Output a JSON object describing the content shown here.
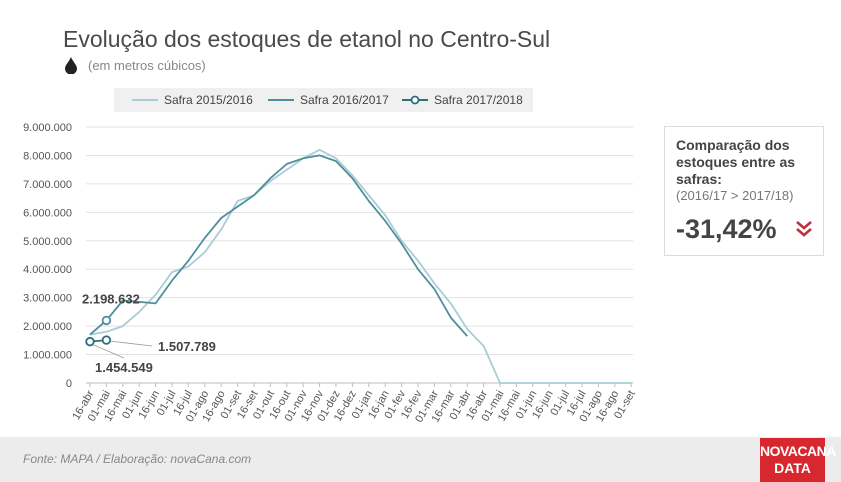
{
  "header": {
    "title": "Evolução dos estoques de etanol no Centro-Sul",
    "subtitle": "(em metros cúbicos)"
  },
  "legend": [
    {
      "name": "Safra 2015/2016",
      "color": "#a9cdd5"
    },
    {
      "name": "Safra 2016/2017",
      "color": "#4f8f9b"
    },
    {
      "name": "Safra 2017/2018",
      "color": "#2f6f7c"
    }
  ],
  "callout": {
    "heading": "Comparação dos estoques entre as safras:",
    "comparison": "(2016/17 > 2017/18)",
    "value": "-31,42%",
    "arrow_icon": "double-chevron-down-icon",
    "arrow_color": "#c0303a"
  },
  "footer": {
    "source": "Fonte: MAPA  / Elaboração: novaCana.com",
    "logo_line1": "NOVACANA",
    "logo_line2": "DATA",
    "logo_color": "#d7282f"
  },
  "chart_data": {
    "type": "line",
    "title": "Evolução dos estoques de etanol no Centro-Sul",
    "subtitle": "(em metros cúbicos)",
    "ylim": [
      0,
      9000000
    ],
    "yticks": [
      0,
      1000000,
      2000000,
      3000000,
      4000000,
      5000000,
      6000000,
      7000000,
      8000000,
      9000000
    ],
    "ytick_labels": [
      "0",
      "1.000.000",
      "2.000.000",
      "3.000.000",
      "4.000.000",
      "5.000.000",
      "6.000.000",
      "7.000.000",
      "8.000.000",
      "9.000.000"
    ],
    "categories": [
      "16-abr",
      "01-mai",
      "16-mai",
      "01-jun",
      "16-jun",
      "01-jul",
      "16-jul",
      "01-ago",
      "16-ago",
      "01-set",
      "16-set",
      "01-out",
      "16-out",
      "01-nov",
      "16-nov",
      "01-dez",
      "16-dez",
      "01-jan",
      "16-jan",
      "01-fev",
      "16-fev",
      "01-mar",
      "16-mar",
      "01-abr",
      "16-abr",
      "01-mai",
      "16-mai",
      "01-jun",
      "16-jun",
      "01-jul",
      "16-jul",
      "01-ago",
      "16-ago",
      "01-set"
    ],
    "grid": true,
    "legend_position": "top",
    "series": [
      {
        "name": "Safra 2015/2016",
        "color": "#a9cdd5",
        "marker": false,
        "values": [
          1700000,
          1800000,
          2000000,
          2500000,
          3100000,
          3900000,
          4100000,
          4600000,
          5400000,
          6400000,
          6600000,
          7100000,
          7500000,
          7900000,
          8200000,
          7900000,
          7300000,
          6600000,
          5900000,
          5000000,
          4300000,
          3500000,
          2800000,
          1900000,
          1300000,
          0,
          0,
          0,
          0,
          0,
          0,
          0,
          0,
          0
        ]
      },
      {
        "name": "Safra 2016/2017",
        "color": "#4f8f9b",
        "marker": false,
        "values": [
          1700000,
          2200000,
          2900000,
          2850000,
          2800000,
          3600000,
          4300000,
          5100000,
          5800000,
          6200000,
          6600000,
          7200000,
          7700000,
          7900000,
          8000000,
          7800000,
          7200000,
          6400000,
          5700000,
          4900000,
          4000000,
          3300000,
          2300000,
          1650000,
          null,
          null,
          null,
          null,
          null,
          null,
          null,
          null,
          null,
          null
        ]
      },
      {
        "name": "Safra 2017/2018",
        "color": "#2f6f7c",
        "marker": true,
        "values": [
          1454549,
          1507789,
          null,
          null,
          null,
          null,
          null,
          null,
          null,
          null,
          null,
          null,
          null,
          null,
          null,
          null,
          null,
          null,
          null,
          null,
          null,
          null,
          null,
          null,
          null,
          null,
          null,
          null,
          null,
          null,
          null,
          null,
          null,
          null
        ]
      }
    ],
    "annotations": [
      {
        "text": "2.198.632",
        "value": 2198632,
        "category": "01-mai"
      },
      {
        "text": "1.507.789",
        "value": 1507789,
        "category": "01-mai"
      },
      {
        "text": "1.454.549",
        "value": 1454549,
        "category": "16-abr"
      }
    ]
  }
}
